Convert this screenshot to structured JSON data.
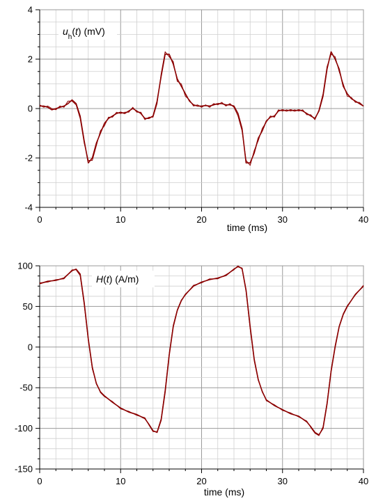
{
  "colors": {
    "trace": "#8b0000",
    "grid_major": "#9a9a9a",
    "grid_minor": "#cfcfcf",
    "axis": "#000000"
  },
  "chart_data": [
    {
      "type": "line",
      "title_var": "u",
      "title_sub": "h",
      "title_rest": "(t) (mV)",
      "xlabel": "time (ms)",
      "ylabel": "",
      "xlim": [
        0,
        40
      ],
      "ylim": [
        -4,
        4
      ],
      "xticks": [
        "0",
        "10",
        "20",
        "30",
        "40"
      ],
      "yticks": [
        "4",
        "2",
        "0",
        "-2",
        "-4"
      ],
      "grid": true,
      "series": [
        {
          "x": [
            0,
            0.5,
            1,
            1.5,
            2,
            2.5,
            3,
            3.5,
            4,
            4.5,
            5,
            5.5,
            6,
            6.5,
            7,
            7.5,
            8,
            8.5,
            9,
            9.5,
            10,
            10.5,
            11,
            11.5,
            12,
            12.5,
            13,
            13.5,
            14,
            14.5,
            15,
            15.5,
            16,
            16.5,
            17,
            17.5,
            18,
            18.5,
            19,
            19.5,
            20,
            20.5,
            21,
            21.5,
            22,
            22.5,
            23,
            23.5,
            24,
            24.5,
            25,
            25.5,
            26,
            26.5,
            27,
            27.5,
            28,
            28.5,
            29,
            29.5,
            30,
            30.5,
            31,
            31.5,
            32,
            32.5,
            33,
            33.5,
            34,
            34.5,
            35,
            35.5,
            36,
            36.5,
            37,
            37.5,
            38,
            38.5,
            39,
            39.5,
            40
          ],
          "y": [
            0.1,
            0.1,
            0.05,
            -0.05,
            0.0,
            0.05,
            0.1,
            0.2,
            0.35,
            0.2,
            -0.3,
            -1.3,
            -2.2,
            -2.0,
            -1.4,
            -1.0,
            -0.6,
            -0.4,
            -0.3,
            -0.2,
            -0.15,
            -0.2,
            -0.1,
            0.0,
            -0.1,
            -0.2,
            -0.4,
            -0.4,
            -0.3,
            0.3,
            1.3,
            2.2,
            2.2,
            1.8,
            1.2,
            0.9,
            0.6,
            0.3,
            0.15,
            0.1,
            0.1,
            0.12,
            0.1,
            0.15,
            0.2,
            0.2,
            0.15,
            0.15,
            0.1,
            -0.2,
            -0.8,
            -2.2,
            -2.2,
            -1.8,
            -1.2,
            -0.9,
            -0.5,
            -0.35,
            -0.3,
            -0.1,
            -0.05,
            -0.1,
            -0.05,
            -0.1,
            -0.05,
            -0.1,
            -0.2,
            -0.3,
            -0.4,
            -0.1,
            0.5,
            1.6,
            2.3,
            2.0,
            1.6,
            0.9,
            0.6,
            0.4,
            0.3,
            0.2,
            0.1
          ]
        },
        {
          "x": [
            0,
            0.5,
            1,
            1.5,
            2,
            2.5,
            3,
            3.5,
            4,
            4.5,
            5,
            5.5,
            6,
            6.5,
            7,
            7.5,
            8,
            8.5,
            9,
            9.5,
            10,
            10.5,
            11,
            11.5,
            12,
            12.5,
            13,
            13.5,
            14,
            14.5,
            15,
            15.5,
            16,
            16.5,
            17,
            17.5,
            18,
            18.5,
            19,
            19.5,
            20,
            20.5,
            21,
            21.5,
            22,
            22.5,
            23,
            23.5,
            24,
            24.5,
            25,
            25.5,
            26,
            26.5,
            27,
            27.5,
            28,
            28.5,
            29,
            29.5,
            30,
            30.5,
            31,
            31.5,
            32,
            32.5,
            33,
            33.5,
            34,
            34.5,
            35,
            35.5,
            36,
            36.5,
            37,
            37.5,
            38,
            38.5,
            39,
            39.5,
            40
          ],
          "y": [
            0.15,
            0.05,
            0.1,
            0.0,
            -0.05,
            0.1,
            0.05,
            0.3,
            0.3,
            0.15,
            -0.4,
            -1.4,
            -2.1,
            -2.1,
            -1.5,
            -0.9,
            -0.7,
            -0.35,
            -0.35,
            -0.15,
            -0.2,
            -0.15,
            -0.15,
            0.05,
            -0.15,
            -0.15,
            -0.45,
            -0.35,
            -0.35,
            0.2,
            1.4,
            2.3,
            2.1,
            1.9,
            1.1,
            1.0,
            0.5,
            0.35,
            0.1,
            0.15,
            0.05,
            0.15,
            0.05,
            0.2,
            0.15,
            0.25,
            0.1,
            0.2,
            0.05,
            -0.3,
            -0.9,
            -2.1,
            -2.3,
            -1.7,
            -1.3,
            -0.8,
            -0.55,
            -0.3,
            -0.35,
            -0.05,
            -0.1,
            -0.05,
            -0.1,
            -0.05,
            -0.1,
            -0.05,
            -0.25,
            -0.25,
            -0.45,
            -0.05,
            0.6,
            1.7,
            2.2,
            2.1,
            1.5,
            1.0,
            0.5,
            0.45,
            0.25,
            0.25,
            0.1
          ]
        }
      ]
    },
    {
      "type": "line",
      "title_var": "H",
      "title_sub": "",
      "title_rest": "(t) (A/m)",
      "xlabel": "time (ms)",
      "ylabel": "",
      "xlim": [
        0,
        40
      ],
      "ylim": [
        -150,
        100
      ],
      "xticks": [
        "0",
        "10",
        "20",
        "30",
        "40"
      ],
      "yticks": [
        "100",
        "50",
        "0",
        "-50",
        "-100",
        "-150"
      ],
      "grid": true,
      "series": [
        {
          "x": [
            0,
            1,
            2,
            3,
            4,
            4.5,
            5,
            5.5,
            6,
            6.5,
            7,
            7.5,
            8,
            9,
            10,
            11,
            12,
            13,
            13.5,
            14,
            14.5,
            15,
            15.5,
            16,
            16.5,
            17,
            17.5,
            18,
            19,
            20,
            21,
            22,
            23,
            24,
            24.5,
            25,
            25.5,
            26,
            26.5,
            27,
            27.5,
            28,
            29,
            30,
            31,
            32,
            33,
            33.5,
            34,
            34.5,
            35,
            35.5,
            36,
            36.5,
            37,
            37.5,
            38,
            39,
            40
          ],
          "y": [
            78,
            81,
            82,
            85,
            94,
            96,
            90,
            55,
            10,
            -25,
            -45,
            -55,
            -60,
            -68,
            -75,
            -80,
            -83,
            -88,
            -95,
            -103,
            -105,
            -90,
            -55,
            -10,
            25,
            45,
            57,
            65,
            75,
            80,
            83,
            85,
            88,
            96,
            99,
            97,
            70,
            25,
            -15,
            -40,
            -55,
            -65,
            -72,
            -77,
            -82,
            -85,
            -92,
            -98,
            -105,
            -108,
            -100,
            -70,
            -30,
            0,
            25,
            40,
            50,
            65,
            75
          ]
        },
        {
          "x": [
            0,
            1,
            2,
            3,
            4,
            4.5,
            5,
            5.5,
            6,
            6.5,
            7,
            7.5,
            8,
            9,
            10,
            11,
            12,
            13,
            13.5,
            14,
            14.5,
            15,
            15.5,
            16,
            16.5,
            17,
            17.5,
            18,
            19,
            20,
            21,
            22,
            23,
            24,
            24.5,
            25,
            25.5,
            26,
            26.5,
            27,
            27.5,
            28,
            29,
            30,
            31,
            32,
            33,
            33.5,
            34,
            34.5,
            35,
            35.5,
            36,
            36.5,
            37,
            37.5,
            38,
            39,
            40
          ],
          "y": [
            79,
            80,
            83,
            84,
            95,
            95,
            88,
            52,
            8,
            -27,
            -44,
            -56,
            -61,
            -67,
            -76,
            -79,
            -84,
            -87,
            -96,
            -104,
            -104,
            -88,
            -52,
            -8,
            27,
            46,
            58,
            64,
            76,
            79,
            84,
            84,
            89,
            95,
            100,
            96,
            68,
            22,
            -17,
            -41,
            -54,
            -66,
            -71,
            -78,
            -81,
            -86,
            -91,
            -99,
            -106,
            -109,
            -98,
            -68,
            -28,
            2,
            26,
            41,
            51,
            64,
            76
          ]
        }
      ]
    }
  ]
}
